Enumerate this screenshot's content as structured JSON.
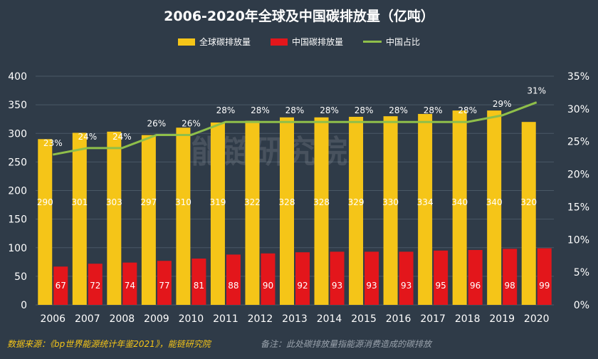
{
  "title": "2006-2020年全球及中国碳排放量（亿吨）",
  "legend": {
    "global": "全球碳排放量",
    "china": "中国碳排放量",
    "share": "中国占比"
  },
  "footer": {
    "source": "数据来源：《bp世界能源统计年鉴2021》，能链研究院",
    "note": "备注：此处碳排放量指能源消费造成的碳排放"
  },
  "watermark": "能链研究院",
  "colors": {
    "background": "#2f3b48",
    "global": "#f5c518",
    "china": "#e3161b",
    "share": "#8fbf4a",
    "grid": "#4a5866"
  },
  "chart_data": {
    "type": "bar",
    "title": "2006-2020年全球及中国碳排放量（亿吨）",
    "categories": [
      "2006",
      "2007",
      "2008",
      "2009",
      "2010",
      "2011",
      "2012",
      "2013",
      "2014",
      "2015",
      "2016",
      "2017",
      "2018",
      "2019",
      "2020"
    ],
    "series": [
      {
        "name": "全球碳排放量",
        "type": "bar",
        "axis": "left",
        "values": [
          290,
          301,
          303,
          297,
          310,
          319,
          322,
          328,
          328,
          329,
          330,
          334,
          340,
          340,
          320
        ]
      },
      {
        "name": "中国碳排放量",
        "type": "bar",
        "axis": "left",
        "values": [
          67,
          72,
          74,
          77,
          81,
          88,
          90,
          92,
          93,
          93,
          93,
          95,
          96,
          98,
          99
        ]
      },
      {
        "name": "中国占比",
        "type": "line",
        "axis": "right",
        "unit": "%",
        "values": [
          23,
          24,
          24,
          26,
          26,
          28,
          28,
          28,
          28,
          28,
          28,
          28,
          28,
          29,
          31
        ]
      }
    ],
    "y_left": {
      "min": 0,
      "max": 400,
      "ticks": [
        "0",
        "50",
        "100",
        "150",
        "200",
        "250",
        "300",
        "350",
        "400"
      ]
    },
    "y_right": {
      "min": 0,
      "max": 35,
      "ticks": [
        "0%",
        "5%",
        "10%",
        "15%",
        "20%",
        "25%",
        "30%",
        "35%"
      ]
    },
    "grid": true,
    "legend_position": "top-center"
  }
}
